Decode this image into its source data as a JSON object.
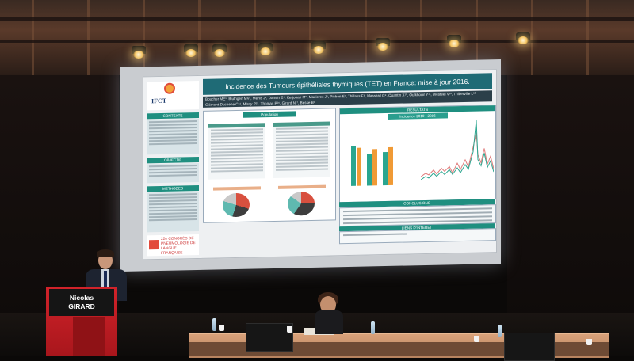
{
  "slide": {
    "title": "Incidence des Tumeurs épithéliales thymiques (TET) en France: mise à jour 2016.",
    "authors": "Boucher ME¹, Bluthgen MV², Menis J³, Dansin E⁴, Kerjouan M⁵, Mazieres J⁶, Pichon E⁷, Thillays F⁸, Massard G⁹, Quantin X¹⁰, Oulkhouir Y¹¹, Westeel V¹², Thiberville L¹³, Clément-Duchene C¹⁴, Missy P¹⁵, Thomas P¹⁶, Girard N¹⁷, Besse B¹",
    "logo_text": "IFCT",
    "sections": {
      "contexte": "CONTEXTE",
      "objectif": "OBJECTIF",
      "methodes": "METHODES",
      "population": "Population",
      "resultats": "RESULTATS",
      "conclusions": "CONCLUSIONS",
      "liens": "LIENS D'INTERET"
    },
    "congress": "22e CONGRÈS DE PNEUMOLOGIE DE LANGUE FRANÇAISE",
    "chart_title": "Incidence 2010 - 2016"
  },
  "speaker": {
    "name_line1": "Nicolas",
    "name_line2": "GIRARD"
  }
}
